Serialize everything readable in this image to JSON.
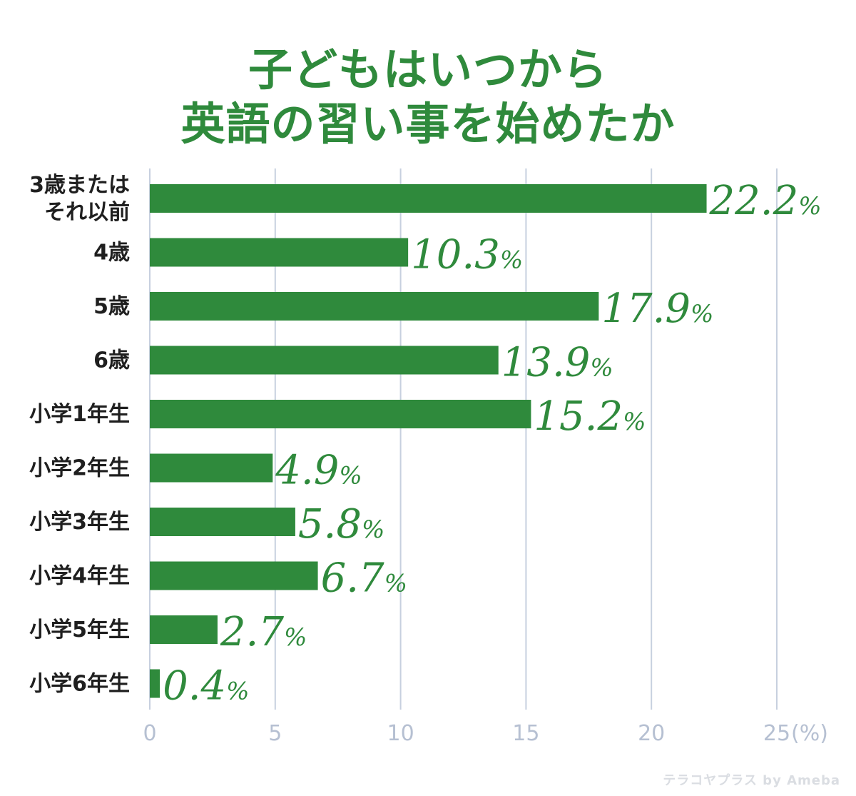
{
  "chart_data": {
    "type": "bar",
    "orientation": "horizontal",
    "title_lines": [
      "子どもはいつから",
      "英語の習い事を始めたか"
    ],
    "categories": [
      [
        "3歳または",
        "それ以前"
      ],
      [
        "4歳"
      ],
      [
        "5歳"
      ],
      [
        "6歳"
      ],
      [
        "小学1年生"
      ],
      [
        "小学2年生"
      ],
      [
        "小学3年生"
      ],
      [
        "小学4年生"
      ],
      [
        "小学5年生"
      ],
      [
        "小学6年生"
      ]
    ],
    "values": [
      22.2,
      10.3,
      17.9,
      13.9,
      15.2,
      4.9,
      5.8,
      6.7,
      2.7,
      0.4
    ],
    "value_labels": [
      "22.2",
      "10.3",
      "17.9",
      "13.9",
      "15.2",
      "4.9",
      "5.8",
      "6.7",
      "2.7",
      "0.4"
    ],
    "value_unit": "%",
    "xlim": [
      0,
      25
    ],
    "x_ticks": [
      "0",
      "5",
      "10",
      "15",
      "20",
      "25"
    ],
    "x_unit_label": "(%)",
    "grid": true,
    "legend": "none",
    "colors": {
      "bar": "#2f8a3c",
      "title": "#2f8a3c",
      "grid": "#c7d0df",
      "tick": "#b6c0d2",
      "category": "#1f1f1f"
    }
  },
  "watermark": "テラコヤプラス by Ameba"
}
